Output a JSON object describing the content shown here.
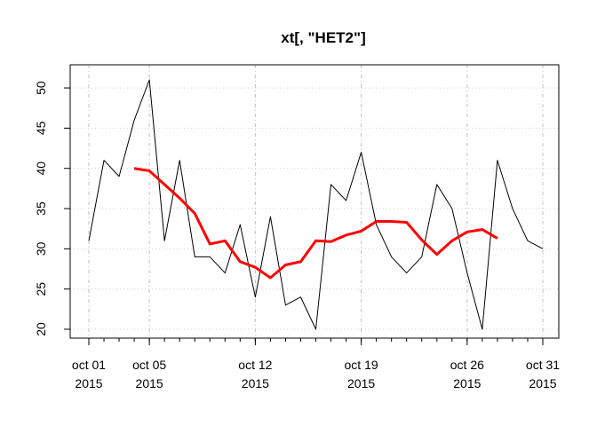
{
  "chart_data": {
    "type": "line",
    "title": "xt[, \"HET2\"]",
    "xlabel": "",
    "ylabel": "",
    "x": [
      "2015-10-01",
      "2015-10-02",
      "2015-10-03",
      "2015-10-04",
      "2015-10-05",
      "2015-10-06",
      "2015-10-07",
      "2015-10-08",
      "2015-10-09",
      "2015-10-10",
      "2015-10-11",
      "2015-10-12",
      "2015-10-13",
      "2015-10-14",
      "2015-10-15",
      "2015-10-16",
      "2015-10-17",
      "2015-10-18",
      "2015-10-19",
      "2015-10-20",
      "2015-10-21",
      "2015-10-22",
      "2015-10-23",
      "2015-10-24",
      "2015-10-25",
      "2015-10-26",
      "2015-10-27",
      "2015-10-28",
      "2015-10-29",
      "2015-10-30",
      "2015-10-31"
    ],
    "series": [
      {
        "color": "#000000",
        "values": [
          31,
          41,
          39,
          46,
          51,
          31,
          41,
          29,
          29,
          27,
          33,
          24,
          34,
          23,
          24,
          20,
          38,
          36,
          42,
          33,
          29,
          27,
          29,
          38,
          35,
          27,
          20,
          41,
          35,
          31,
          30
        ]
      },
      {
        "color": "#ff0000",
        "values": [
          null,
          null,
          null,
          40,
          39.7,
          38,
          36.3,
          34.4,
          30.6,
          31,
          28.4,
          27.7,
          26.4,
          28,
          28.4,
          31,
          30.9,
          31.7,
          32.2,
          33.4,
          33.4,
          33.3,
          31.1,
          29.3,
          31,
          32.1,
          32.4,
          31.3,
          null,
          null,
          null
        ]
      }
    ],
    "ylim": [
      20,
      51
    ],
    "yticks": [
      "20",
      "25",
      "30",
      "35",
      "40",
      "45",
      "50"
    ],
    "xtick_labels": [
      {
        "date": "2015-10-01",
        "line1": "oct 01",
        "line2": "2015"
      },
      {
        "date": "2015-10-05",
        "line1": "oct 05",
        "line2": "2015"
      },
      {
        "date": "2015-10-12",
        "line1": "oct 12",
        "line2": "2015"
      },
      {
        "date": "2015-10-19",
        "line1": "oct 19",
        "line2": "2015"
      },
      {
        "date": "2015-10-26",
        "line1": "oct 26",
        "line2": "2015"
      },
      {
        "date": "2015-10-31",
        "line1": "oct 31",
        "line2": "2015"
      }
    ],
    "minor_tick_dates": [
      "2015-10-01",
      "2015-10-02",
      "2015-10-03",
      "2015-10-04",
      "2015-10-05",
      "2015-10-06",
      "2015-10-07",
      "2015-10-08",
      "2015-10-09",
      "2015-10-10",
      "2015-10-11",
      "2015-10-12",
      "2015-10-13",
      "2015-10-14",
      "2015-10-15",
      "2015-10-16",
      "2015-10-17",
      "2015-10-18",
      "2015-10-19",
      "2015-10-20",
      "2015-10-21",
      "2015-10-22",
      "2015-10-23",
      "2015-10-24",
      "2015-10-25",
      "2015-10-26",
      "2015-10-27",
      "2015-10-28",
      "2015-10-29",
      "2015-10-30",
      "2015-10-31"
    ],
    "grid": true
  }
}
